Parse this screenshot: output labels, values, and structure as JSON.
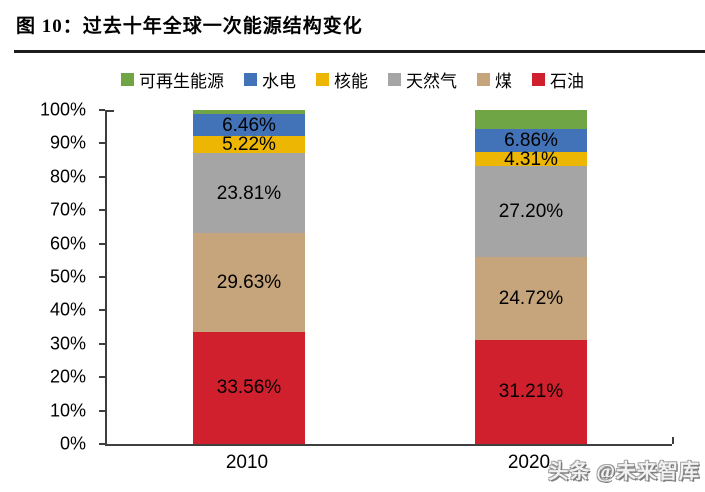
{
  "title": "图 10：过去十年全球一次能源结构变化",
  "watermark": "头条 @未来智库",
  "chart_data": {
    "type": "bar",
    "stacked": true,
    "title": "过去十年全球一次能源结构变化",
    "categories": [
      "2010",
      "2020"
    ],
    "series": [
      {
        "name": "石油",
        "color": "#D0202E",
        "values": [
          33.56,
          31.21
        ],
        "labels": [
          "33.56%",
          "31.21%"
        ]
      },
      {
        "name": "煤",
        "color": "#C6A47C",
        "values": [
          29.63,
          24.72
        ],
        "labels": [
          "29.63%",
          "24.72%"
        ]
      },
      {
        "name": "天然气",
        "color": "#A5A5A5",
        "values": [
          23.81,
          27.2
        ],
        "labels": [
          "23.81%",
          "27.20%"
        ]
      },
      {
        "name": "核能",
        "color": "#EDB602",
        "values": [
          5.22,
          4.31
        ],
        "labels": [
          "5.22%",
          "4.31%"
        ]
      },
      {
        "name": "水电",
        "color": "#4273B9",
        "values": [
          6.46,
          6.86
        ],
        "labels": [
          "6.46%",
          "6.86%"
        ]
      },
      {
        "name": "可再生能源",
        "color": "#6FA545",
        "values": [
          1.32,
          5.7
        ],
        "labels": [
          "",
          ""
        ]
      }
    ],
    "legend": [
      "可再生能源",
      "水电",
      "核能",
      "天然气",
      "煤",
      "石油"
    ],
    "legend_position": "top",
    "y_axis": {
      "ticks": [
        "100%",
        "90%",
        "80%",
        "70%",
        "60%",
        "50%",
        "40%",
        "30%",
        "20%",
        "10%",
        "0%"
      ],
      "min": 0,
      "max": 100,
      "unit": "%"
    },
    "grid": false
  }
}
